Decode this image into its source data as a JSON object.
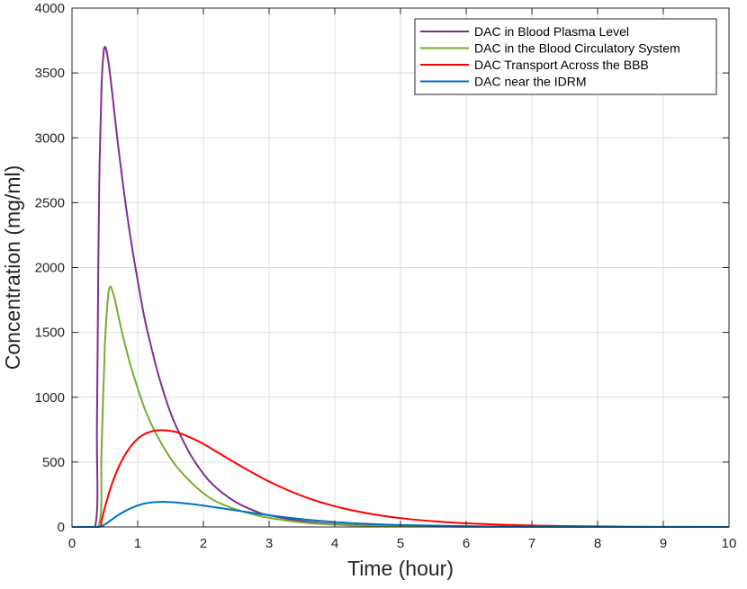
{
  "chart_data": {
    "type": "line",
    "title": "",
    "xlabel": "Time (hour)",
    "ylabel": "Concentration (mg/ml)",
    "xlim": [
      0,
      10
    ],
    "ylim": [
      0,
      4000
    ],
    "xticks": [
      0,
      1,
      2,
      3,
      4,
      5,
      6,
      7,
      8,
      9,
      10
    ],
    "yticks": [
      0,
      500,
      1000,
      1500,
      2000,
      2500,
      3000,
      3500,
      4000
    ],
    "xtick_labels": [
      "0",
      "1",
      "2",
      "3",
      "4",
      "5",
      "6",
      "7",
      "8",
      "9",
      "10"
    ],
    "ytick_labels": [
      "0",
      "500",
      "1000",
      "1500",
      "2000",
      "2500",
      "3000",
      "3500",
      "4000"
    ],
    "grid": true,
    "legend_position": "top-right",
    "series": [
      {
        "name": "DAC in Blood Plasma Level",
        "color": "#7E2F8E",
        "x": [
          0,
          0.35,
          0.38,
          0.4,
          0.42,
          0.45,
          0.48,
          0.5,
          0.52,
          0.55,
          0.6,
          0.7,
          0.8,
          0.9,
          1.0,
          1.1,
          1.2,
          1.3,
          1.4,
          1.5,
          1.6,
          1.8,
          2.0,
          2.2,
          2.5,
          2.8,
          3.0,
          3.5,
          4.0,
          4.5,
          5.0,
          6.0,
          7.0,
          8.0,
          9.0,
          10.0
        ],
        "y": [
          0,
          0,
          800,
          2000,
          2800,
          3400,
          3650,
          3700,
          3680,
          3600,
          3400,
          2950,
          2550,
          2200,
          1900,
          1620,
          1400,
          1200,
          1030,
          880,
          760,
          560,
          410,
          300,
          190,
          120,
          90,
          45,
          22,
          11,
          6,
          2,
          0.5,
          0,
          0,
          0
        ]
      },
      {
        "name": "DAC in the Blood Circulatory System",
        "color": "#77AC30",
        "x": [
          0,
          0.4,
          0.45,
          0.5,
          0.55,
          0.58,
          0.6,
          0.65,
          0.7,
          0.8,
          0.9,
          1.0,
          1.1,
          1.2,
          1.3,
          1.4,
          1.5,
          1.6,
          1.8,
          2.0,
          2.2,
          2.5,
          2.8,
          3.0,
          3.5,
          4.0,
          4.5,
          5.0,
          6.0,
          7.0,
          8.0,
          9.0,
          10.0
        ],
        "y": [
          0,
          0,
          600,
          1400,
          1780,
          1850,
          1840,
          1760,
          1640,
          1420,
          1230,
          1070,
          920,
          800,
          700,
          610,
          530,
          460,
          350,
          260,
          195,
          135,
          92,
          70,
          35,
          18,
          9,
          5,
          1,
          0,
          0,
          0,
          0
        ]
      },
      {
        "name": "DAC Transport Across the BBB",
        "color": "#FF0000",
        "x": [
          0,
          0.4,
          0.45,
          0.5,
          0.6,
          0.7,
          0.8,
          0.9,
          1.0,
          1.1,
          1.2,
          1.3,
          1.4,
          1.5,
          1.6,
          1.8,
          2.0,
          2.2,
          2.5,
          3.0,
          3.5,
          4.0,
          4.5,
          5.0,
          5.5,
          6.0,
          7.0,
          8.0,
          9.0,
          10.0
        ],
        "y": [
          0,
          0,
          50,
          150,
          320,
          450,
          550,
          625,
          680,
          715,
          735,
          745,
          745,
          740,
          730,
          690,
          640,
          580,
          490,
          350,
          240,
          160,
          105,
          68,
          44,
          28,
          11,
          4,
          1,
          0
        ]
      },
      {
        "name": "DAC near the IDRM",
        "color": "#0072BD",
        "x": [
          0,
          0.4,
          0.5,
          0.6,
          0.7,
          0.8,
          0.9,
          1.0,
          1.1,
          1.2,
          1.3,
          1.4,
          1.5,
          1.6,
          1.8,
          2.0,
          2.2,
          2.5,
          3.0,
          3.5,
          4.0,
          4.5,
          5.0,
          6.0,
          7.0,
          8.0,
          9.0,
          10.0
        ],
        "y": [
          0,
          0,
          20,
          55,
          90,
          120,
          145,
          165,
          180,
          188,
          192,
          193,
          191,
          188,
          178,
          165,
          150,
          127,
          90,
          60,
          38,
          24,
          15,
          6,
          2,
          0.5,
          0,
          0
        ]
      }
    ]
  }
}
